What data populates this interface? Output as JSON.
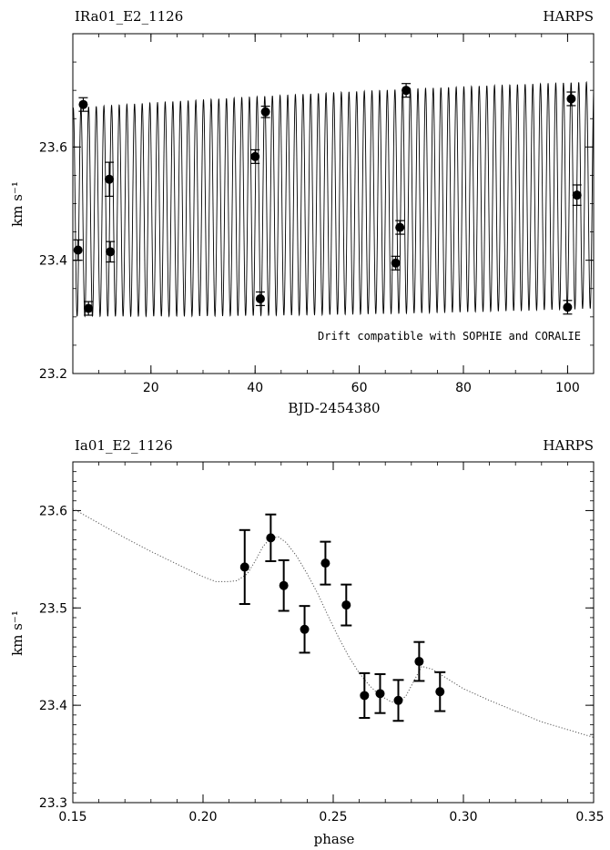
{
  "chart_data": [
    {
      "type": "scatter",
      "title_left": "IRa01_E2_1126",
      "title_right": "HARPS",
      "xlabel": "BJD-2454380",
      "ylabel": "km s⁻¹",
      "xlim": [
        5,
        105
      ],
      "ylim": [
        23.2,
        23.8
      ],
      "xticks": [
        20,
        40,
        60,
        80,
        100
      ],
      "yticks": [
        23.2,
        23.4,
        23.6
      ],
      "annotation": "Drift compatible with SOPHIE and CORALIE",
      "model": {
        "type": "sinusoid",
        "cycles_in_range": 68,
        "center_start": 23.485,
        "center_end": 23.515,
        "amplitude": 0.2
      },
      "points": [
        {
          "x": 6.0,
          "y": 23.418,
          "err": 0.018
        },
        {
          "x": 7.0,
          "y": 23.675,
          "err": 0.012
        },
        {
          "x": 8.0,
          "y": 23.315,
          "err": 0.012
        },
        {
          "x": 12.0,
          "y": 23.543,
          "err": 0.03
        },
        {
          "x": 12.2,
          "y": 23.415,
          "err": 0.018
        },
        {
          "x": 40.0,
          "y": 23.583,
          "err": 0.012
        },
        {
          "x": 41.0,
          "y": 23.332,
          "err": 0.012
        },
        {
          "x": 42.0,
          "y": 23.662,
          "err": 0.01
        },
        {
          "x": 67.0,
          "y": 23.395,
          "err": 0.012
        },
        {
          "x": 67.8,
          "y": 23.458,
          "err": 0.012
        },
        {
          "x": 69.0,
          "y": 23.7,
          "err": 0.012
        },
        {
          "x": 100.0,
          "y": 23.317,
          "err": 0.012
        },
        {
          "x": 100.7,
          "y": 23.685,
          "err": 0.012
        },
        {
          "x": 101.8,
          "y": 23.515,
          "err": 0.018
        }
      ]
    },
    {
      "type": "scatter",
      "title_left": "Ia01_E2_1126",
      "title_right": "HARPS",
      "xlabel": "phase",
      "ylabel": "km s⁻¹",
      "xlim": [
        0.15,
        0.35
      ],
      "ylim": [
        23.3,
        23.65
      ],
      "xticks": [
        0.15,
        0.2,
        0.25,
        0.3,
        0.35
      ],
      "yticks": [
        23.3,
        23.4,
        23.5,
        23.6
      ],
      "model_curve": [
        [
          0.15,
          23.602
        ],
        [
          0.16,
          23.587
        ],
        [
          0.17,
          23.572
        ],
        [
          0.18,
          23.558
        ],
        [
          0.19,
          23.545
        ],
        [
          0.2,
          23.532
        ],
        [
          0.205,
          23.527
        ],
        [
          0.21,
          23.527
        ],
        [
          0.213,
          23.528
        ],
        [
          0.217,
          23.535
        ],
        [
          0.22,
          23.548
        ],
        [
          0.223,
          23.563
        ],
        [
          0.226,
          23.572
        ],
        [
          0.229,
          23.573
        ],
        [
          0.232,
          23.567
        ],
        [
          0.236,
          23.553
        ],
        [
          0.24,
          23.535
        ],
        [
          0.244,
          23.515
        ],
        [
          0.248,
          23.492
        ],
        [
          0.252,
          23.47
        ],
        [
          0.256,
          23.45
        ],
        [
          0.26,
          23.433
        ],
        [
          0.264,
          23.42
        ],
        [
          0.268,
          23.41
        ],
        [
          0.272,
          23.404
        ],
        [
          0.275,
          23.402
        ],
        [
          0.278,
          23.41
        ],
        [
          0.281,
          23.425
        ],
        [
          0.284,
          23.44
        ],
        [
          0.288,
          23.437
        ],
        [
          0.3,
          23.417
        ],
        [
          0.31,
          23.405
        ],
        [
          0.32,
          23.394
        ],
        [
          0.33,
          23.383
        ],
        [
          0.34,
          23.375
        ],
        [
          0.35,
          23.367
        ]
      ],
      "points": [
        {
          "x": 0.216,
          "y": 23.542,
          "err": 0.038
        },
        {
          "x": 0.226,
          "y": 23.572,
          "err": 0.024
        },
        {
          "x": 0.231,
          "y": 23.523,
          "err": 0.026
        },
        {
          "x": 0.239,
          "y": 23.478,
          "err": 0.024
        },
        {
          "x": 0.247,
          "y": 23.546,
          "err": 0.022
        },
        {
          "x": 0.255,
          "y": 23.503,
          "err": 0.021
        },
        {
          "x": 0.262,
          "y": 23.41,
          "err": 0.023
        },
        {
          "x": 0.268,
          "y": 23.412,
          "err": 0.02
        },
        {
          "x": 0.275,
          "y": 23.405,
          "err": 0.021
        },
        {
          "x": 0.283,
          "y": 23.445,
          "err": 0.02
        },
        {
          "x": 0.291,
          "y": 23.414,
          "err": 0.02
        }
      ]
    }
  ]
}
